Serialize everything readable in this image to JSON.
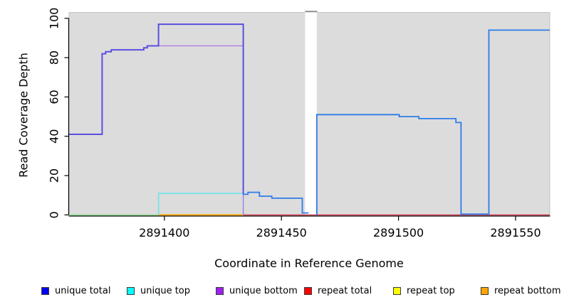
{
  "chart_data": {
    "type": "line",
    "subtype": "step-coverage",
    "title": "",
    "xlabel": "Coordinate in Reference Genome",
    "ylabel": "Read Coverage Depth",
    "xlim": [
      2891359.3,
      2891564.6
    ],
    "ylim": [
      -0.4,
      103.0
    ],
    "x_ticks": [
      2891400,
      2891450,
      2891500,
      2891550
    ],
    "y_ticks": [
      0,
      20,
      40,
      60,
      80,
      100
    ],
    "grid": false,
    "plot_background": "#dcdcdc",
    "plot_border_color": "#c3c3c3",
    "axis_color": "#000000",
    "no_data_band": {
      "x0": 2891460.1,
      "x1": 2891465.1,
      "fill": "#ffffff",
      "top_mark_color": "#8f8f8f"
    },
    "legend": {
      "position": "bottom",
      "entries": [
        {
          "label": "unique total",
          "color": "#0000ee"
        },
        {
          "label": "unique top",
          "color": "#00ffff"
        },
        {
          "label": "unique bottom",
          "color": "#a020f0"
        },
        {
          "label": "repeat total",
          "color": "#ff0000"
        },
        {
          "label": "repeat top",
          "color": "#ffff00"
        },
        {
          "label": "repeat bottom",
          "color": "#ffa500"
        }
      ]
    },
    "series": [
      {
        "name": "zero-line-left-green",
        "legend": "unique top + repeat top overlap at 0",
        "color": "#8de28d",
        "width": 1.4,
        "points": [
          [
            2891359.3,
            0
          ],
          [
            2891397.5,
            0
          ]
        ]
      },
      {
        "name": "repeat-bottom-zero",
        "legend": "repeat bottom",
        "color": "#ffa500",
        "width": 1.8,
        "points": [
          [
            2891397.5,
            0
          ],
          [
            2891433.7,
            0
          ]
        ]
      },
      {
        "name": "repeat-total-zero",
        "legend": "repeat total",
        "color": "#dc3d55",
        "width": 1.4,
        "points": [
          [
            2891433.7,
            0
          ],
          [
            2891564.6,
            0
          ]
        ]
      },
      {
        "name": "unique-top",
        "legend": "unique top",
        "color": "#62e4ea",
        "width": 1.4,
        "points": [
          [
            2891397.5,
            0
          ],
          [
            2891397.5,
            11
          ],
          [
            2891433.7,
            11
          ],
          [
            2891433.7,
            0
          ]
        ]
      },
      {
        "name": "unique-bottom",
        "legend": "unique bottom",
        "color": "#ad74e4",
        "width": 1.3,
        "points": [
          [
            2891397.5,
            86
          ],
          [
            2891433.7,
            86
          ],
          [
            2891433.7,
            0
          ]
        ]
      },
      {
        "name": "unique-total-left",
        "legend": "unique total",
        "color": "#5a4fe0",
        "width": 2,
        "points": [
          [
            2891359.3,
            41
          ],
          [
            2891373.4,
            41
          ],
          [
            2891373.4,
            82
          ],
          [
            2891374.9,
            82
          ],
          [
            2891374.9,
            83
          ],
          [
            2891377.3,
            83
          ],
          [
            2891377.3,
            84
          ],
          [
            2891391.2,
            84
          ],
          [
            2891391.2,
            85
          ],
          [
            2891392.7,
            85
          ],
          [
            2891392.7,
            86
          ],
          [
            2891397.5,
            86
          ],
          [
            2891397.5,
            97
          ],
          [
            2891433.7,
            97
          ],
          [
            2891433.7,
            10.5
          ]
        ]
      },
      {
        "name": "unique-total-mid",
        "legend": "unique total",
        "color": "#2e7ce8",
        "width": 1.8,
        "points": [
          [
            2891433.7,
            10.5
          ],
          [
            2891435.7,
            10.5
          ],
          [
            2891435.7,
            11.5
          ],
          [
            2891440.6,
            11.5
          ],
          [
            2891440.6,
            9.5
          ],
          [
            2891445.9,
            9.5
          ],
          [
            2891445.9,
            8.5
          ],
          [
            2891458.9,
            8.5
          ],
          [
            2891458.9,
            1
          ],
          [
            2891461.6,
            1
          ]
        ]
      },
      {
        "name": "unique-total-right",
        "legend": "unique total",
        "color": "#2e7ce8",
        "width": 1.8,
        "points": [
          [
            2891465.1,
            0
          ],
          [
            2891465.1,
            51
          ],
          [
            2891500.3,
            51
          ],
          [
            2891500.3,
            50
          ],
          [
            2891508.7,
            50
          ],
          [
            2891508.7,
            49
          ],
          [
            2891524.5,
            49
          ],
          [
            2891524.5,
            47
          ],
          [
            2891526.7,
            47
          ],
          [
            2891526.7,
            0.4
          ],
          [
            2891538.6,
            0.4
          ],
          [
            2891538.6,
            94
          ],
          [
            2891564.6,
            94
          ]
        ]
      }
    ]
  }
}
